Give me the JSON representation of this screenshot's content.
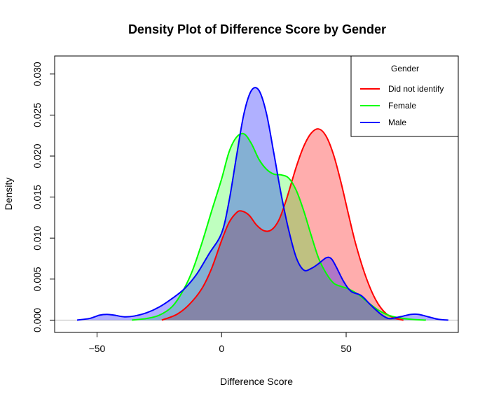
{
  "chart_data": {
    "type": "area",
    "title": "Density Plot of Difference Score by Gender",
    "xlabel": "Difference Score",
    "ylabel": "Density",
    "xlim": [
      -67,
      95
    ],
    "ylim": [
      -0.0015,
      0.0322
    ],
    "x_ticks": [
      -50,
      0,
      50
    ],
    "y_ticks": [
      0.0,
      0.005,
      0.01,
      0.015,
      0.02,
      0.025,
      0.03
    ],
    "y_tick_labels": [
      "0.000",
      "0.005",
      "0.010",
      "0.015",
      "0.020",
      "0.025",
      "0.030"
    ],
    "grid": false,
    "legend": {
      "title": "Gender",
      "placement": "top-right"
    },
    "series": [
      {
        "name": "Did not identify",
        "line_color": "#ff0000",
        "fill_color": "rgba(255,0,0,0.32)",
        "x": [
          -24,
          -18,
          -13,
          -8,
          -4,
          0,
          3,
          6,
          8,
          11,
          14,
          17,
          20,
          23,
          26,
          30,
          33,
          36,
          39,
          42,
          45,
          48,
          51,
          54,
          58,
          62,
          66,
          70,
          73
        ],
        "y": [
          0.0,
          0.0007,
          0.0019,
          0.0038,
          0.0063,
          0.0097,
          0.0119,
          0.0131,
          0.0133,
          0.0128,
          0.0116,
          0.0109,
          0.011,
          0.0122,
          0.0147,
          0.0187,
          0.0212,
          0.0228,
          0.0233,
          0.0224,
          0.0201,
          0.0167,
          0.0128,
          0.0091,
          0.0052,
          0.0024,
          0.0008,
          0.0002,
          0.0
        ]
      },
      {
        "name": "Female",
        "line_color": "#00ff00",
        "fill_color": "rgba(0,255,0,0.25)",
        "x": [
          -36,
          -30,
          -25,
          -20,
          -16,
          -12,
          -8,
          -4,
          0,
          3,
          6,
          9,
          12,
          15,
          18,
          21,
          24,
          27,
          30,
          33,
          36,
          39,
          42,
          45,
          48,
          51,
          55,
          59,
          63,
          67,
          71,
          76,
          82
        ],
        "y": [
          0.0,
          0.0002,
          0.0006,
          0.0016,
          0.0033,
          0.0058,
          0.0093,
          0.0133,
          0.0172,
          0.0205,
          0.0223,
          0.0227,
          0.0215,
          0.0196,
          0.0184,
          0.0178,
          0.0177,
          0.0173,
          0.0158,
          0.0133,
          0.0103,
          0.0075,
          0.0057,
          0.0045,
          0.0041,
          0.0038,
          0.0031,
          0.0021,
          0.0012,
          0.0006,
          0.0003,
          0.0001,
          0.0
        ]
      },
      {
        "name": "Male",
        "line_color": "#0000ff",
        "fill_color": "rgba(0,0,255,0.31)",
        "x": [
          -58,
          -53,
          -49,
          -46,
          -43,
          -39,
          -35,
          -30,
          -25,
          -20,
          -15,
          -10,
          -5,
          0,
          3,
          6,
          9,
          12,
          15,
          18,
          21,
          24,
          27,
          30,
          33,
          36,
          39,
          42,
          44,
          46,
          49,
          52,
          56,
          60,
          64,
          67,
          70,
          73,
          76,
          79,
          83,
          87,
          91
        ],
        "y": [
          0.0,
          0.0002,
          0.0006,
          0.0007,
          0.0006,
          0.0004,
          0.0005,
          0.0009,
          0.0016,
          0.0026,
          0.0038,
          0.0056,
          0.0081,
          0.0106,
          0.0145,
          0.02,
          0.0252,
          0.028,
          0.028,
          0.0252,
          0.0203,
          0.0152,
          0.0109,
          0.0076,
          0.0061,
          0.0063,
          0.0069,
          0.0076,
          0.0075,
          0.0065,
          0.0047,
          0.0035,
          0.003,
          0.0018,
          0.0007,
          0.0002,
          0.0003,
          0.0005,
          0.0007,
          0.0007,
          0.0004,
          0.0001,
          0.0
        ]
      }
    ]
  }
}
